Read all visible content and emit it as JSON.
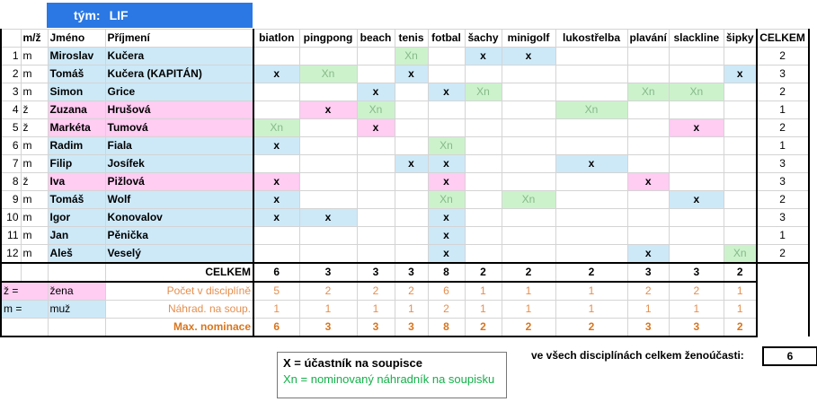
{
  "team": {
    "label": "tým:",
    "name": "LIF"
  },
  "headers": {
    "num": "",
    "gender": "m/ž",
    "first": "Jméno",
    "last": "Příjmení",
    "disciplines": [
      "biatlon",
      "pingpong",
      "beach",
      "tenis",
      "fotbal",
      "šachy",
      "minigolf",
      "lukostřelba",
      "plavání",
      "slackline",
      "šipky"
    ],
    "total": "CELKEM"
  },
  "players": [
    {
      "num": "1",
      "gender": "m",
      "first": "Miroslav",
      "last": "Kučera",
      "cells": [
        "",
        "",
        "",
        "Xn",
        "",
        "x",
        "x",
        "",
        "",
        "",
        ""
      ],
      "total": "2"
    },
    {
      "num": "2",
      "gender": "m",
      "first": "Tomáš",
      "last": "Kučera (KAPITÁN)",
      "cells": [
        "x",
        "Xn",
        "",
        "x",
        "",
        "",
        "",
        "",
        "",
        "",
        "x"
      ],
      "total": "3"
    },
    {
      "num": "3",
      "gender": "m",
      "first": "Simon",
      "last": "Grice",
      "cells": [
        "",
        "",
        "x",
        "",
        "x",
        "Xn",
        "",
        "",
        "Xn",
        "Xn",
        ""
      ],
      "total": "2"
    },
    {
      "num": "4",
      "gender": "ž",
      "first": "Zuzana",
      "last": "Hrušová",
      "cells": [
        "",
        "x",
        "Xn",
        "",
        "",
        "",
        "",
        "Xn",
        "",
        "",
        ""
      ],
      "total": "1"
    },
    {
      "num": "5",
      "gender": "ž",
      "first": "Markéta",
      "last": "Tumová",
      "cells": [
        "Xn",
        "",
        "x",
        "",
        "",
        "",
        "",
        "",
        "",
        "x",
        ""
      ],
      "total": "2"
    },
    {
      "num": "6",
      "gender": "m",
      "first": "Radim",
      "last": "Fiala",
      "cells": [
        "x",
        "",
        "",
        "",
        "Xn",
        "",
        "",
        "",
        "",
        "",
        ""
      ],
      "total": "1"
    },
    {
      "num": "7",
      "gender": "m",
      "first": "Filip",
      "last": "Josífek",
      "cells": [
        "",
        "",
        "",
        "x",
        "x",
        "",
        "",
        "x",
        "",
        "",
        ""
      ],
      "total": "3"
    },
    {
      "num": "8",
      "gender": "ž",
      "first": "Iva",
      "last": "Pižlová",
      "cells": [
        "x",
        "",
        "",
        "",
        "x",
        "",
        "",
        "",
        "x",
        "",
        ""
      ],
      "total": "3"
    },
    {
      "num": "9",
      "gender": "m",
      "first": "Tomáš",
      "last": "Wolf",
      "cells": [
        "x",
        "",
        "",
        "",
        "Xn",
        "",
        "Xn",
        "",
        "",
        "x",
        ""
      ],
      "total": "2"
    },
    {
      "num": "10",
      "gender": "m",
      "first": "Igor",
      "last": "Konovalov",
      "cells": [
        "x",
        "x",
        "",
        "",
        "x",
        "",
        "",
        "",
        "",
        "",
        ""
      ],
      "total": "3"
    },
    {
      "num": "11",
      "gender": "m",
      "first": "Jan",
      "last": "Pěnička",
      "cells": [
        "",
        "",
        "",
        "",
        "x",
        "",
        "",
        "",
        "",
        "",
        ""
      ],
      "total": "1"
    },
    {
      "num": "12",
      "gender": "m",
      "first": "Aleš",
      "last": "Veselý",
      "cells": [
        "",
        "",
        "",
        "",
        "x",
        "",
        "",
        "",
        "x",
        "",
        "Xn"
      ],
      "total": "2"
    }
  ],
  "totals": {
    "label": "CELKEM",
    "values": [
      "6",
      "3",
      "3",
      "3",
      "8",
      "2",
      "2",
      "2",
      "3",
      "3",
      "2"
    ]
  },
  "summary": [
    {
      "key": "ž =",
      "val": "žena",
      "label": "Počet v disciplíně",
      "values": [
        "5",
        "2",
        "2",
        "2",
        "6",
        "1",
        "1",
        "1",
        "2",
        "2",
        "1"
      ]
    },
    {
      "key": "m =",
      "val": "muž",
      "label": "Náhrad. na soup.",
      "values": [
        "1",
        "1",
        "1",
        "1",
        "2",
        "1",
        "1",
        "1",
        "1",
        "1",
        "1"
      ]
    },
    {
      "key": "",
      "val": "",
      "label": "Max. nominace",
      "values": [
        "6",
        "3",
        "3",
        "3",
        "8",
        "2",
        "2",
        "2",
        "3",
        "3",
        "2"
      ]
    }
  ],
  "legend": {
    "line1": "X = účastník na soupisce",
    "line2": "Xn = nominovaný náhradník na soupisku"
  },
  "women": {
    "label": "ve všech disciplínách celkem ženoúčasti:",
    "value": "6"
  },
  "colors": {
    "pink": "#ffccf2",
    "blue": "#cde9f8",
    "green": "#ccf2cc",
    "teamBlue": "#2b78e4"
  }
}
